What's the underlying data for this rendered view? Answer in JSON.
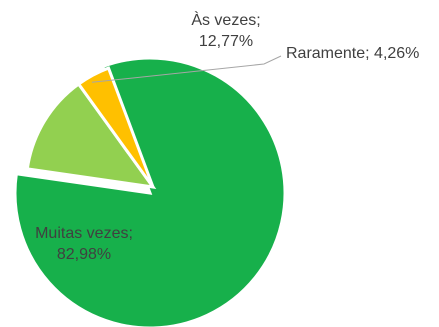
{
  "chart_data": {
    "type": "pie",
    "title": "",
    "legend": "none",
    "slices": [
      {
        "name": "Muitas vezes",
        "value": 82.98,
        "color": "#17b04b",
        "label_lines": [
          "Muitas vezes;",
          "82,98%"
        ]
      },
      {
        "name": "Às vezes",
        "value": 12.77,
        "color": "#92d050",
        "label_lines": [
          "Às vezes;",
          "12,77%"
        ]
      },
      {
        "name": "Raramente",
        "value": 4.26,
        "color": "#ffc000",
        "label_lines": [
          "Raramente; 4,26%"
        ]
      }
    ]
  }
}
